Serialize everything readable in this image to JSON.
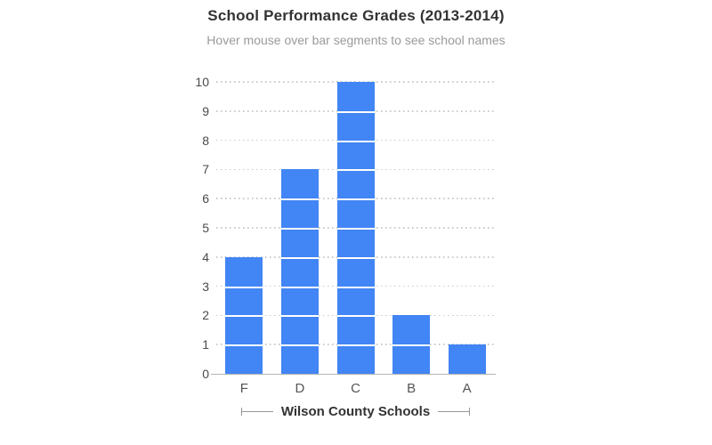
{
  "chart_data": {
    "type": "bar",
    "title": "School Performance Grades (2013-2014)",
    "subtitle": "Hover mouse over bar segments to see school names",
    "categories": [
      "F",
      "D",
      "C",
      "B",
      "A"
    ],
    "values": [
      4,
      7,
      10,
      2,
      1
    ],
    "segment_unit": 1,
    "segment_style": "each bar is split into unit segments of 1 school, separated by white lines",
    "xlabel": "Wilson County Schools",
    "ylabel": "",
    "ylim": [
      0,
      10
    ],
    "yticks": [
      0,
      1,
      2,
      3,
      4,
      5,
      6,
      7,
      8,
      9,
      10
    ],
    "grid": "horizontal dotted lines at ticks 1-10, solid baseline at 0",
    "legend": "none",
    "colors": {
      "bar": "#4285F4",
      "segment_separator": "#ffffff",
      "grid_dots": "#c9c9c9",
      "axis_line": "#b3b3b3",
      "title_text": "#333333",
      "subtitle_text": "#9a9a9a",
      "ytick_text": "#4a4a4a",
      "xtick_text": "#555555",
      "bracket_line": "#999999"
    }
  }
}
